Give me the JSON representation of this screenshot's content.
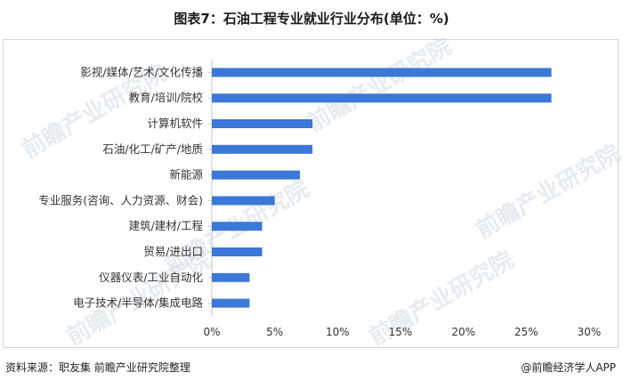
{
  "title": "图表7：石油工程专业就业行业分布(单位：%)",
  "footer": {
    "source": "资料来源：职友集 前瞻产业研究院整理",
    "brand": "@前瞻经济学人APP"
  },
  "watermark": "前瞻产业研究院",
  "colors": {
    "bar": "#3b78d8",
    "axis": "#c8c8c8",
    "text": "#333333"
  },
  "chart_data": {
    "type": "bar",
    "orientation": "horizontal",
    "categories": [
      "影视/媒体/艺术/文化传播",
      "教育/培训/院校",
      "计算机软件",
      "石油/化工/矿产/地质",
      "新能源",
      "专业服务(咨询、人力资源、财会)",
      "建筑/建材/工程",
      "贸易/进出口",
      "仪器仪表/工业自动化",
      "电子技术/半导体/集成电路"
    ],
    "values": [
      27,
      27,
      8,
      8,
      7,
      5,
      4,
      4,
      3,
      3
    ],
    "xlim": [
      0,
      30
    ],
    "xticks": [
      "0%",
      "5%",
      "10%",
      "15%",
      "20%",
      "25%",
      "30%"
    ],
    "xlabel": "",
    "ylabel": "",
    "grid": false,
    "legend": "none"
  }
}
